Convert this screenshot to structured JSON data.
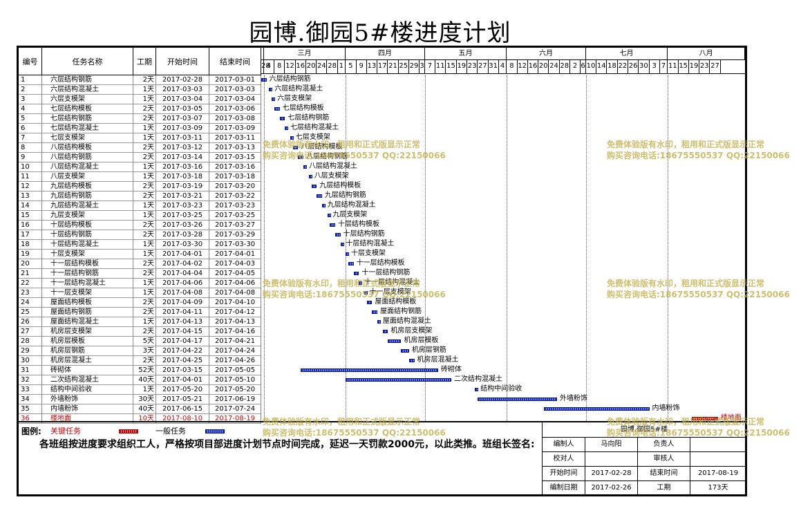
{
  "title": "园博.御园5#楼进度计划",
  "columns": {
    "id": "编号",
    "name": "任务名称",
    "dur": "工期",
    "start": "开始时间",
    "end": "结束时间"
  },
  "months": [
    {
      "label": "三月",
      "days": 31
    },
    {
      "label": "四月",
      "days": 30
    },
    {
      "label": "五月",
      "days": 31
    },
    {
      "label": "六月",
      "days": 30
    },
    {
      "label": "七月",
      "days": 31
    },
    {
      "label": "八月",
      "days": 31
    }
  ],
  "day_ticks": [
    "28",
    "4",
    "8",
    "12",
    "16",
    "20",
    "24",
    "28",
    "1",
    "5",
    "9",
    "13",
    "17",
    "21",
    "25",
    "29",
    "3",
    "7",
    "11",
    "15",
    "19",
    "23",
    "27",
    "31",
    "4",
    "8",
    "12",
    "16",
    "20",
    "24",
    "28",
    "2",
    "6",
    "10",
    "14",
    "18",
    "22",
    "26",
    "30",
    "3",
    "7",
    "11",
    "15",
    "19",
    "23",
    "27"
  ],
  "tasks": [
    {
      "id": "1",
      "name": "六层结构钢筋",
      "dur": "2天",
      "start": "2017-02-28",
      "end": "2017-03-01",
      "critical": false
    },
    {
      "id": "2",
      "name": "六层结构混凝土",
      "dur": "1天",
      "start": "2017-03-03",
      "end": "2017-03-03",
      "critical": false
    },
    {
      "id": "3",
      "name": "六层支模架",
      "dur": "1天",
      "start": "2017-03-04",
      "end": "2017-03-04",
      "critical": false
    },
    {
      "id": "4",
      "name": "七层结构模板",
      "dur": "2天",
      "start": "2017-03-05",
      "end": "2017-03-06",
      "critical": false
    },
    {
      "id": "5",
      "name": "七层结构钢筋",
      "dur": "2天",
      "start": "2017-03-07",
      "end": "2017-03-08",
      "critical": false
    },
    {
      "id": "6",
      "name": "七层结构混凝土",
      "dur": "1天",
      "start": "2017-03-09",
      "end": "2017-03-09",
      "critical": false
    },
    {
      "id": "7",
      "name": "七层支模架",
      "dur": "1天",
      "start": "2017-03-11",
      "end": "2017-03-11",
      "critical": false
    },
    {
      "id": "8",
      "name": "八层结构模板",
      "dur": "2天",
      "start": "2017-03-12",
      "end": "2017-03-13",
      "critical": false
    },
    {
      "id": "9",
      "name": "八层结构钢筋",
      "dur": "2天",
      "start": "2017-03-14",
      "end": "2017-03-15",
      "critical": false
    },
    {
      "id": "10",
      "name": "八层结构混凝土",
      "dur": "1天",
      "start": "2017-03-16",
      "end": "2017-03-16",
      "critical": false
    },
    {
      "id": "11",
      "name": "八层支模架",
      "dur": "1天",
      "start": "2017-03-18",
      "end": "2017-03-18",
      "critical": false
    },
    {
      "id": "12",
      "name": "九层结构模板",
      "dur": "2天",
      "start": "2017-03-19",
      "end": "2017-03-20",
      "critical": false
    },
    {
      "id": "13",
      "name": "九层结构钢筋",
      "dur": "2天",
      "start": "2017-03-21",
      "end": "2017-03-22",
      "critical": false
    },
    {
      "id": "14",
      "name": "九层结构混凝土",
      "dur": "1天",
      "start": "2017-03-23",
      "end": "2017-03-23",
      "critical": false
    },
    {
      "id": "15",
      "name": "九层支模架",
      "dur": "1天",
      "start": "2017-03-25",
      "end": "2017-03-25",
      "critical": false
    },
    {
      "id": "16",
      "name": "十层结构模板",
      "dur": "2天",
      "start": "2017-03-26",
      "end": "2017-03-27",
      "critical": false
    },
    {
      "id": "17",
      "name": "十层结构钢筋",
      "dur": "2天",
      "start": "2017-03-28",
      "end": "2017-03-29",
      "critical": false
    },
    {
      "id": "18",
      "name": "十层结构混凝土",
      "dur": "1天",
      "start": "2017-03-30",
      "end": "2017-03-30",
      "critical": false
    },
    {
      "id": "19",
      "name": "十层支模架",
      "dur": "1天",
      "start": "2017-04-01",
      "end": "2017-04-01",
      "critical": false
    },
    {
      "id": "20",
      "name": "十一层结构模板",
      "dur": "2天",
      "start": "2017-04-02",
      "end": "2017-04-03",
      "critical": false
    },
    {
      "id": "21",
      "name": "十一层结构钢筋",
      "dur": "2天",
      "start": "2017-04-04",
      "end": "2017-04-05",
      "critical": false
    },
    {
      "id": "22",
      "name": "十一层结构混凝土",
      "dur": "1天",
      "start": "2017-04-06",
      "end": "2017-04-06",
      "critical": false
    },
    {
      "id": "23",
      "name": "十一层支模架",
      "dur": "1天",
      "start": "2017-04-08",
      "end": "2017-04-08",
      "critical": false
    },
    {
      "id": "24",
      "name": "屋面结构模板",
      "dur": "2天",
      "start": "2017-04-09",
      "end": "2017-04-10",
      "critical": false
    },
    {
      "id": "25",
      "name": "屋面结构钢筋",
      "dur": "2天",
      "start": "2017-04-11",
      "end": "2017-04-12",
      "critical": false
    },
    {
      "id": "26",
      "name": "屋面结构混凝土",
      "dur": "1天",
      "start": "2017-04-13",
      "end": "2017-04-13",
      "critical": false
    },
    {
      "id": "27",
      "name": "机房层支模架",
      "dur": "2天",
      "start": "2017-04-15",
      "end": "2017-04-16",
      "critical": false
    },
    {
      "id": "28",
      "name": "机房层模板",
      "dur": "5天",
      "start": "2017-04-17",
      "end": "2017-04-21",
      "critical": false
    },
    {
      "id": "29",
      "name": "机房层钢筋",
      "dur": "3天",
      "start": "2017-04-22",
      "end": "2017-04-24",
      "critical": false
    },
    {
      "id": "30",
      "name": "机房层混凝土",
      "dur": "2天",
      "start": "2017-04-25",
      "end": "2017-04-26",
      "critical": false
    },
    {
      "id": "31",
      "name": "砖砌体",
      "dur": "52天",
      "start": "2017-03-15",
      "end": "2017-05-05",
      "critical": false
    },
    {
      "id": "32",
      "name": "二次结构混凝土",
      "dur": "40天",
      "start": "2017-04-01",
      "end": "2017-05-10",
      "critical": false
    },
    {
      "id": "33",
      "name": "结构中间验收",
      "dur": "1天",
      "start": "2017-05-20",
      "end": "2017-05-20",
      "critical": false
    },
    {
      "id": "34",
      "name": "外墙粉饰",
      "dur": "30天",
      "start": "2017-05-21",
      "end": "2017-06-19",
      "critical": false
    },
    {
      "id": "35",
      "name": "内墙粉饰",
      "dur": "40天",
      "start": "2017-06-15",
      "end": "2017-07-24",
      "critical": false
    },
    {
      "id": "36",
      "name": "楼地面",
      "dur": "10天",
      "start": "2017-08-10",
      "end": "2017-08-19",
      "critical": true
    }
  ],
  "legend": {
    "title": "图例:",
    "critical": "关键任务",
    "normal": "一般任务"
  },
  "note": "各班组按进度要求组织工人，严格按项目部进度计划节点时间完成，延迟一天罚款2000元，以此类推。班组长签名:",
  "info": {
    "project": "园博.御园5#楼",
    "rows": [
      [
        "编制人",
        "马向阳",
        "负责人",
        ""
      ],
      [
        "校对人",
        "",
        "审核人",
        ""
      ],
      [
        "开始时间",
        "2017-02-28",
        "结束时间",
        "2017-08-19"
      ],
      [
        "编制日期",
        "2017-02-26",
        "工期",
        "173天"
      ]
    ]
  },
  "watermark": {
    "line1": "免费体验版有水印，租用和正式版显示正常",
    "line2": "购买咨询电话:18675550537 QQ:22150066"
  },
  "colors": {
    "critical": "#e00000",
    "normal": "#1a2ec8"
  }
}
